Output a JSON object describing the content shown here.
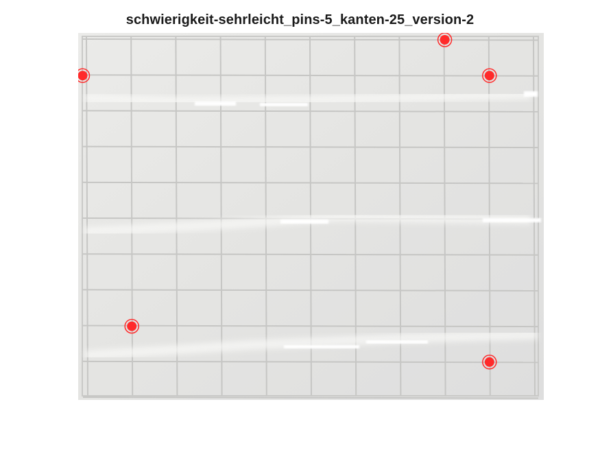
{
  "figure": {
    "title": "schwierigkeit-sehrleicht_pins-5_kanten-25_version-2"
  },
  "image": {
    "description_ref": "pins",
    "grid": {
      "columns": 10,
      "rows": 10
    },
    "pins": [
      {
        "id": 1,
        "col": 8.0,
        "row": 0.0
      },
      {
        "id": 2,
        "col": -0.1,
        "row": 1.0
      },
      {
        "id": 3,
        "col": 9.0,
        "row": 1.0
      },
      {
        "id": 4,
        "col": 1.0,
        "row": 8.0
      },
      {
        "id": 5,
        "col": 9.0,
        "row": 9.0
      }
    ],
    "pin_color": "#ff2a2a"
  }
}
